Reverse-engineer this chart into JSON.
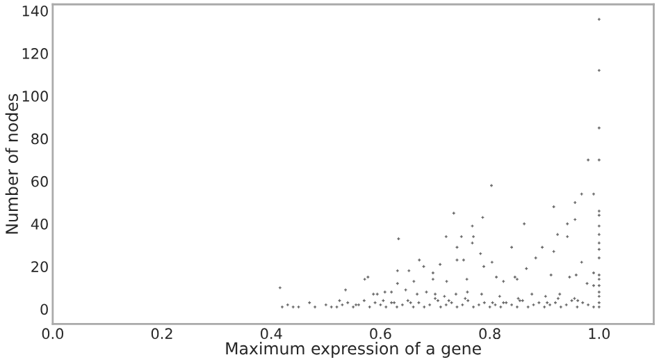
{
  "chart_data": {
    "type": "scatter",
    "xlabel": "Maximum expression of a gene",
    "ylabel": "Number of nodes",
    "xlim": [
      0,
      1.1
    ],
    "ylim": [
      -7,
      143
    ],
    "xticks": [
      {
        "value": 0,
        "label": "0.0"
      },
      {
        "value": 0.2,
        "label": "0.2"
      },
      {
        "value": 0.4,
        "label": "0.4"
      },
      {
        "value": 0.6,
        "label": "0.6"
      },
      {
        "value": 0.8,
        "label": "0.8"
      },
      {
        "value": 1,
        "label": "1.0"
      }
    ],
    "yticks": [
      0,
      20,
      40,
      60,
      80,
      100,
      120,
      140
    ],
    "marker": "cross",
    "grid": false,
    "series": [
      {
        "color": "#666666",
        "x": [
          1.0,
          1.0,
          1.0,
          1.0,
          0.98,
          0.803,
          0.99,
          0.968,
          0.956,
          0.917,
          1.0,
          1.0,
          1.0,
          1.0,
          1.0,
          1.0,
          1.0,
          1.0,
          1.0,
          1.0,
          1.0,
          1.0,
          1.0,
          1.0,
          0.734,
          0.787,
          0.942,
          0.863,
          0.768,
          0.956,
          0.77,
          0.748,
          0.72,
          0.942,
          0.924,
          0.917,
          0.896,
          0.84,
          0.633,
          0.768,
          0.74,
          0.884,
          0.968,
          0.671,
          0.74,
          0.752,
          0.783,
          0.804,
          0.709,
          0.679,
          0.789,
          0.867,
          0.416,
          0.577,
          0.571,
          0.631,
          0.652,
          0.631,
          0.661,
          0.696,
          0.696,
          0.721,
          0.758,
          0.812,
          0.825,
          0.846,
          0.85,
          0.912,
          0.946,
          0.958,
          0.99,
          0.99,
          0.978,
          0.536,
          0.587,
          0.594,
          0.608,
          0.62,
          0.646,
          0.667,
          0.684,
          0.7,
          0.717,
          0.738,
          0.759,
          0.785,
          0.818,
          0.852,
          0.877,
          0.902,
          0.928,
          0.961,
          0.42,
          0.43,
          0.44,
          0.45,
          0.47,
          0.48,
          0.5,
          0.51,
          0.52,
          0.53,
          0.54,
          0.55,
          0.56,
          0.57,
          0.58,
          0.59,
          0.6,
          0.61,
          0.62,
          0.63,
          0.64,
          0.65,
          0.66,
          0.67,
          0.68,
          0.69,
          0.7,
          0.71,
          0.72,
          0.73,
          0.74,
          0.75,
          0.76,
          0.77,
          0.78,
          0.79,
          0.8,
          0.81,
          0.82,
          0.83,
          0.84,
          0.85,
          0.86,
          0.87,
          0.88,
          0.89,
          0.9,
          0.91,
          0.92,
          0.93,
          0.94,
          0.95,
          0.96,
          0.97,
          0.98,
          0.99,
          0.555,
          0.605,
          0.655,
          0.705,
          0.755,
          0.805,
          0.855,
          0.905,
          0.955,
          0.525,
          0.625,
          0.725,
          0.825,
          0.925
        ],
        "values": [
          136,
          112,
          85,
          70,
          70,
          58,
          54,
          54,
          50,
          48,
          46,
          44,
          39,
          35,
          31,
          28,
          24,
          16,
          14,
          11,
          8,
          6,
          3,
          1,
          45,
          43,
          40,
          40,
          39,
          42,
          34,
          34,
          34,
          34,
          35,
          27,
          29,
          29,
          33,
          31,
          29,
          24,
          22,
          23,
          23,
          23,
          26,
          22,
          21,
          20,
          20,
          19,
          10,
          15,
          14,
          18,
          18,
          12,
          13,
          17,
          14,
          13,
          14,
          15,
          13,
          15,
          14,
          16,
          15,
          16,
          17,
          11,
          12,
          9,
          7,
          7,
          8,
          8,
          9,
          7,
          8,
          7,
          6,
          7,
          8,
          7,
          6,
          5,
          7,
          6,
          7,
          4,
          1,
          2,
          1,
          1,
          3,
          1,
          2,
          1,
          1,
          2,
          3,
          1,
          2,
          4,
          1,
          3,
          2,
          1,
          3,
          1,
          2,
          4,
          1,
          3,
          1,
          2,
          5,
          1,
          2,
          3,
          1,
          2,
          4,
          1,
          2,
          3,
          1,
          2,
          1,
          3,
          2,
          1,
          4,
          1,
          2,
          3,
          1,
          2,
          3,
          1,
          2,
          4,
          1,
          3,
          2,
          1,
          2,
          4,
          3,
          4,
          5,
          3,
          4,
          3,
          5,
          4,
          3,
          4,
          3,
          5
        ]
      }
    ]
  }
}
